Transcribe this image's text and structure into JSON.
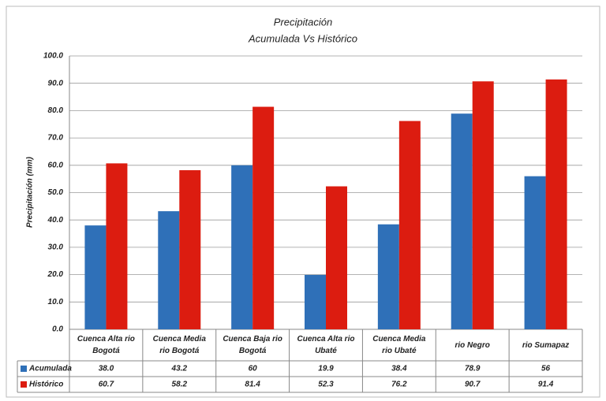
{
  "chart_data": {
    "type": "bar",
    "title": "Precipitación",
    "subtitle": "Acumulada Vs Histórico",
    "y_label": "Precipitación (mm)",
    "categories": [
      "Cuenca Alta rio Bogotá",
      "Cuenca Media rio Bogotá",
      "Cuenca Baja rio Bogotá",
      "Cuenca Alta rio Ubaté",
      "Cuenca Media rio Ubaté",
      "rio Negro",
      "rio Sumapaz"
    ],
    "series": [
      {
        "name": "Acumulada",
        "color": "#2f70b8",
        "values": [
          38,
          43.2,
          60,
          19.9,
          38.4,
          78.9,
          56
        ],
        "value_labels": [
          "38.0",
          "43.2",
          "60",
          "19.9",
          "38.4",
          "78.9",
          "56"
        ]
      },
      {
        "name": "Histórico",
        "color": "#dc1c10",
        "values": [
          60.7,
          58.2,
          81.4,
          52.3,
          76.2,
          90.7,
          91.4
        ]
      }
    ],
    "ylim": [
      0,
      100
    ],
    "yticks": [
      {
        "value": 0,
        "label": "0.0"
      },
      {
        "value": 10,
        "label": "10.0"
      },
      {
        "value": 20,
        "label": "20.0"
      },
      {
        "value": 30,
        "label": "30.0"
      },
      {
        "value": 40,
        "label": "40.0"
      },
      {
        "value": 50,
        "label": "50.0"
      },
      {
        "value": 60,
        "label": "60.0"
      },
      {
        "value": 70,
        "label": "70.0"
      },
      {
        "value": 80,
        "label": "80.0"
      },
      {
        "value": 90,
        "label": "90.0"
      },
      {
        "value": 100,
        "label": "100.0"
      }
    ],
    "grid": true
  }
}
